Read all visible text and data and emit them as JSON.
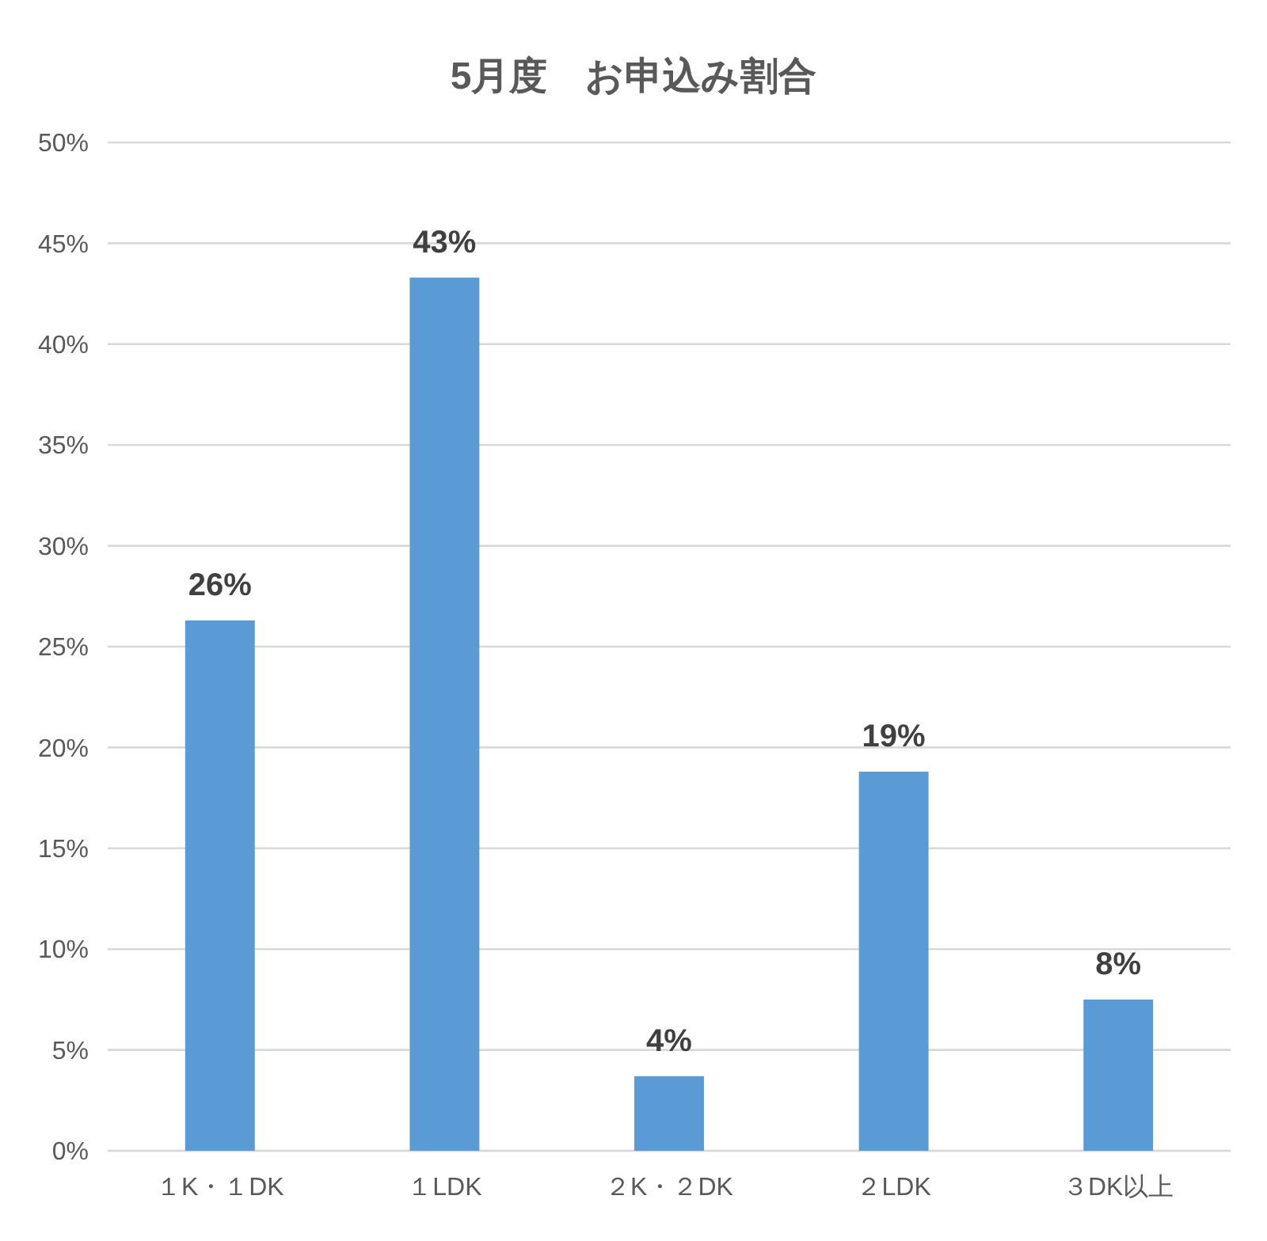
{
  "chart_data": {
    "type": "bar",
    "title": "5月度　お申込み割合",
    "categories": [
      "１K・１DK",
      "１LDK",
      "２K・２DK",
      "２LDK",
      "３DK以上"
    ],
    "values": [
      26.3,
      43.3,
      3.7,
      18.8,
      7.5
    ],
    "color": "#5b9bd5",
    "value_labels": [
      "26%",
      "43%",
      "4%",
      "19%",
      "8%"
    ],
    "ylim": [
      0,
      50
    ],
    "yticks": [
      {
        "value": 0,
        "label": "0%"
      },
      {
        "value": 5,
        "label": "5%"
      },
      {
        "value": 10,
        "label": "10%"
      },
      {
        "value": 15,
        "label": "15%"
      },
      {
        "value": 20,
        "label": "20%"
      },
      {
        "value": 25,
        "label": "25%"
      },
      {
        "value": 30,
        "label": "30%"
      },
      {
        "value": 35,
        "label": "35%"
      },
      {
        "value": 40,
        "label": "40%"
      },
      {
        "value": 45,
        "label": "45%"
      },
      {
        "value": 50,
        "label": "50%"
      }
    ],
    "grid": "y"
  }
}
